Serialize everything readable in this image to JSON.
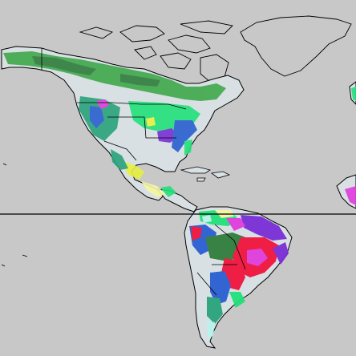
{
  "map": {
    "ocean_color": "#c8c8c8",
    "land_color": "#d8e0e4",
    "coastline_color": "#000000",
    "equator_line": true,
    "palette": {
      "boreal_green": "#3fa84a",
      "dark_green": "#2f7d3c",
      "bright_green": "#22e07a",
      "teal": "#2aa37a",
      "blue": "#2a5fd0",
      "purple": "#7a2fd6",
      "magenta": "#e03cdc",
      "red": "#f0143c",
      "yellow": "#e8f040",
      "light_yellow": "#f4f6a0",
      "pale_cyan": "#b8f4ec"
    }
  }
}
